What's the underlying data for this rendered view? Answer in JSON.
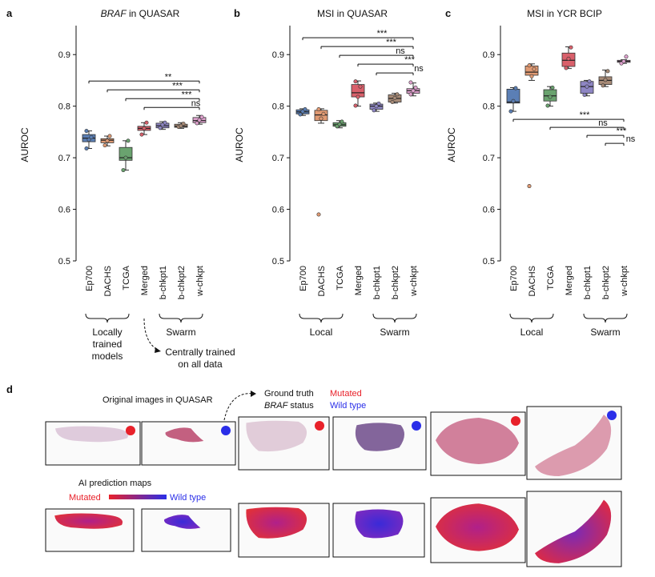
{
  "figure": {
    "panel_letters": [
      "a",
      "b",
      "c",
      "d"
    ]
  },
  "chart_data": [
    {
      "type": "box",
      "panel": "a",
      "title_italic": "BRAF",
      "title_rest": " in QUASAR",
      "ylabel": "AUROC",
      "ylim": [
        0.5,
        0.95
      ],
      "yticks": [
        "0.5",
        "0.6",
        "0.7",
        "0.8",
        "0.9"
      ],
      "categories": [
        "Ep700",
        "DACHS",
        "TCGA",
        "Merged",
        "b-chkpt1",
        "b-chkpt2",
        "w-chkpt"
      ],
      "colors": [
        "#5b7fb5",
        "#e09a73",
        "#6aa36f",
        "#d9606b",
        "#8e86c4",
        "#a88b77",
        "#e0a2cf"
      ],
      "boxes": [
        {
          "q1": 0.731,
          "median": 0.738,
          "q3": 0.745,
          "whisker_low": 0.718,
          "whisker_high": 0.752,
          "points": [
            0.718,
            0.735,
            0.74,
            0.752
          ]
        },
        {
          "q1": 0.729,
          "median": 0.734,
          "q3": 0.737,
          "whisker_low": 0.723,
          "whisker_high": 0.742,
          "points": [
            0.724,
            0.733,
            0.742
          ]
        },
        {
          "q1": 0.695,
          "median": 0.7,
          "q3": 0.72,
          "whisker_low": 0.676,
          "whisker_high": 0.733,
          "points": [
            0.676,
            0.7,
            0.733
          ]
        },
        {
          "q1": 0.753,
          "median": 0.757,
          "q3": 0.761,
          "whisker_low": 0.745,
          "whisker_high": 0.768,
          "points": [
            0.745,
            0.757,
            0.768
          ]
        },
        {
          "q1": 0.758,
          "median": 0.762,
          "q3": 0.767,
          "whisker_low": 0.755,
          "whisker_high": 0.77,
          "points": [
            0.758,
            0.764,
            0.768
          ]
        },
        {
          "q1": 0.759,
          "median": 0.761,
          "q3": 0.765,
          "whisker_low": 0.757,
          "whisker_high": 0.768,
          "points": [
            0.76,
            0.762,
            0.766
          ]
        },
        {
          "q1": 0.768,
          "median": 0.772,
          "q3": 0.778,
          "whisker_low": 0.765,
          "whisker_high": 0.782,
          "points": [
            0.767,
            0.773,
            0.779
          ]
        }
      ],
      "comparisons": [
        {
          "from": 0,
          "to": 6,
          "label": "**"
        },
        {
          "from": 1,
          "to": 6,
          "label": "***"
        },
        {
          "from": 2,
          "to": 6,
          "label": "***"
        },
        {
          "from": 3,
          "to": 6,
          "label": "ns"
        }
      ],
      "comparison_side": "above",
      "group_brackets": [
        {
          "from": 0,
          "to": 2,
          "lines": [
            "Locally",
            "trained",
            "models"
          ]
        },
        {
          "from": 4,
          "to": 6,
          "lines": [
            "Swarm"
          ]
        }
      ],
      "arrow_note": [
        "Centrally trained",
        "on all data"
      ]
    },
    {
      "type": "box",
      "panel": "b",
      "title_italic": "",
      "title_rest": "MSI in QUASAR",
      "ylabel": "AUROC",
      "ylim": [
        0.5,
        0.95
      ],
      "yticks": [
        "0.5",
        "0.6",
        "0.7",
        "0.8",
        "0.9"
      ],
      "categories": [
        "Ep700",
        "DACHS",
        "TCGA",
        "Merged",
        "b-chkpt1",
        "b-chkpt2",
        "w-chkpt"
      ],
      "colors": [
        "#5b7fb5",
        "#e09a73",
        "#6aa36f",
        "#d9606b",
        "#8e86c4",
        "#a88b77",
        "#e0a2cf"
      ],
      "boxes": [
        {
          "q1": 0.785,
          "median": 0.789,
          "q3": 0.793,
          "whisker_low": 0.782,
          "whisker_high": 0.795,
          "points": [
            0.784,
            0.79,
            0.794
          ]
        },
        {
          "q1": 0.772,
          "median": 0.783,
          "q3": 0.792,
          "whisker_low": 0.767,
          "whisker_high": 0.795,
          "points": [
            0.59,
            0.776,
            0.785,
            0.794
          ]
        },
        {
          "q1": 0.761,
          "median": 0.764,
          "q3": 0.768,
          "whisker_low": 0.758,
          "whisker_high": 0.772,
          "points": [
            0.761,
            0.765,
            0.77
          ]
        },
        {
          "q1": 0.818,
          "median": 0.826,
          "q3": 0.842,
          "whisker_low": 0.8,
          "whisker_high": 0.849,
          "points": [
            0.801,
            0.818,
            0.838,
            0.848
          ]
        },
        {
          "q1": 0.794,
          "median": 0.8,
          "q3": 0.804,
          "whisker_low": 0.79,
          "whisker_high": 0.806,
          "points": [
            0.792,
            0.8,
            0.805
          ]
        },
        {
          "q1": 0.808,
          "median": 0.815,
          "q3": 0.822,
          "whisker_low": 0.806,
          "whisker_high": 0.825,
          "points": [
            0.808,
            0.816,
            0.823
          ]
        },
        {
          "q1": 0.825,
          "median": 0.83,
          "q3": 0.834,
          "whisker_low": 0.82,
          "whisker_high": 0.845,
          "points": [
            0.823,
            0.83,
            0.836,
            0.846
          ]
        }
      ],
      "comparisons": [
        {
          "from": 0,
          "to": 6,
          "label": "***"
        },
        {
          "from": 1,
          "to": 6,
          "label": "***"
        },
        {
          "from": 2,
          "to": 6,
          "label": "ns"
        },
        {
          "from": 3,
          "to": 6,
          "label": "***"
        },
        {
          "from": 4,
          "to": 6,
          "label": "ns"
        }
      ],
      "comparison_side": "above",
      "group_brackets": [
        {
          "from": 0,
          "to": 2,
          "lines": [
            "Local"
          ]
        },
        {
          "from": 4,
          "to": 6,
          "lines": [
            "Swarm"
          ]
        }
      ]
    },
    {
      "type": "box",
      "panel": "c",
      "title_italic": "",
      "title_rest": "MSI in YCR BCIP",
      "ylabel": "AUROC",
      "ylim": [
        0.5,
        0.95
      ],
      "yticks": [
        "0.5",
        "0.6",
        "0.7",
        "0.8",
        "0.9"
      ],
      "categories": [
        "Ep700",
        "DACHS",
        "TCGA",
        "Merged",
        "b-chkpt1",
        "b-chkpt2",
        "w-chkpt"
      ],
      "colors": [
        "#5b7fb5",
        "#e09a73",
        "#6aa36f",
        "#d9606b",
        "#8e86c4",
        "#a88b77",
        "#e0a2cf"
      ],
      "boxes": [
        {
          "q1": 0.806,
          "median": 0.808,
          "q3": 0.833,
          "whisker_low": 0.79,
          "whisker_high": 0.836,
          "points": [
            0.79,
            0.81,
            0.835
          ]
        },
        {
          "q1": 0.86,
          "median": 0.866,
          "q3": 0.878,
          "whisker_low": 0.85,
          "whisker_high": 0.882,
          "points": [
            0.645,
            0.858,
            0.872,
            0.879
          ]
        },
        {
          "q1": 0.81,
          "median": 0.82,
          "q3": 0.832,
          "whisker_low": 0.8,
          "whisker_high": 0.838,
          "points": [
            0.801,
            0.818,
            0.836
          ]
        },
        {
          "q1": 0.877,
          "median": 0.889,
          "q3": 0.903,
          "whisker_low": 0.873,
          "whisker_high": 0.915,
          "points": [
            0.874,
            0.892,
            0.914
          ]
        },
        {
          "q1": 0.825,
          "median": 0.838,
          "q3": 0.848,
          "whisker_low": 0.82,
          "whisker_high": 0.85,
          "points": [
            0.822,
            0.838,
            0.848
          ]
        },
        {
          "q1": 0.842,
          "median": 0.85,
          "q3": 0.857,
          "whisker_low": 0.838,
          "whisker_high": 0.87,
          "points": [
            0.84,
            0.851,
            0.868
          ]
        },
        {
          "q1": 0.885,
          "median": 0.887,
          "q3": 0.889,
          "whisker_low": 0.883,
          "whisker_high": 0.89,
          "points": [
            0.883,
            0.887,
            0.896
          ]
        }
      ],
      "comparisons": [
        {
          "from": 0,
          "to": 6,
          "label": "***"
        },
        {
          "from": 2,
          "to": 6,
          "label": "ns"
        },
        {
          "from": 4,
          "to": 6,
          "label": "***"
        },
        {
          "from": 5,
          "to": 6,
          "label": "ns"
        }
      ],
      "comparison_side": "below",
      "group_brackets": [
        {
          "from": 0,
          "to": 2,
          "lines": [
            "Local"
          ]
        },
        {
          "from": 4,
          "to": 6,
          "lines": [
            "Swarm"
          ]
        }
      ]
    }
  ],
  "panel_d": {
    "original_label": "Original images in QUASAR",
    "ground_truth_line1": "Ground truth",
    "ground_truth_line2_italic": "BRAF",
    "ground_truth_line2_rest": " status",
    "legend_mutated": "Mutated",
    "legend_wild": "Wild type",
    "mutated_color": "#e8212a",
    "wild_color": "#2a2ee8",
    "prediction_label": "AI prediction maps",
    "gradient_mutated": "Mutated",
    "gradient_wild": "Wild type",
    "slides": [
      {
        "status": "mutated"
      },
      {
        "status": "wild"
      },
      {
        "status": "mutated"
      },
      {
        "status": "wild"
      },
      {
        "status": "mutated"
      },
      {
        "status": "wild"
      }
    ]
  }
}
